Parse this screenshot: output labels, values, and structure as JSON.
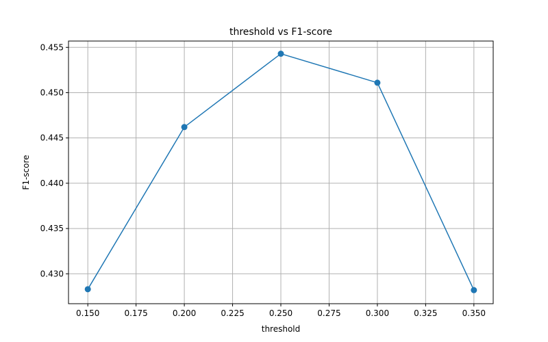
{
  "chart_data": {
    "type": "line",
    "title": "threshold vs F1-score",
    "xlabel": "threshold",
    "ylabel": "F1-score",
    "x": [
      0.15,
      0.2,
      0.25,
      0.3,
      0.35
    ],
    "series": [
      {
        "values": [
          0.4283,
          0.4462,
          0.4543,
          0.4511,
          0.4282
        ],
        "color": "#1f77b4",
        "marker": "circle"
      }
    ],
    "xlim": [
      0.14,
      0.36
    ],
    "ylim": [
      0.4267,
      0.4557
    ],
    "xticks": [
      "0.150",
      "0.175",
      "0.200",
      "0.225",
      "0.250",
      "0.275",
      "0.300",
      "0.325",
      "0.350"
    ],
    "yticks": [
      "0.430",
      "0.435",
      "0.440",
      "0.445",
      "0.450",
      "0.455"
    ],
    "grid": true
  }
}
